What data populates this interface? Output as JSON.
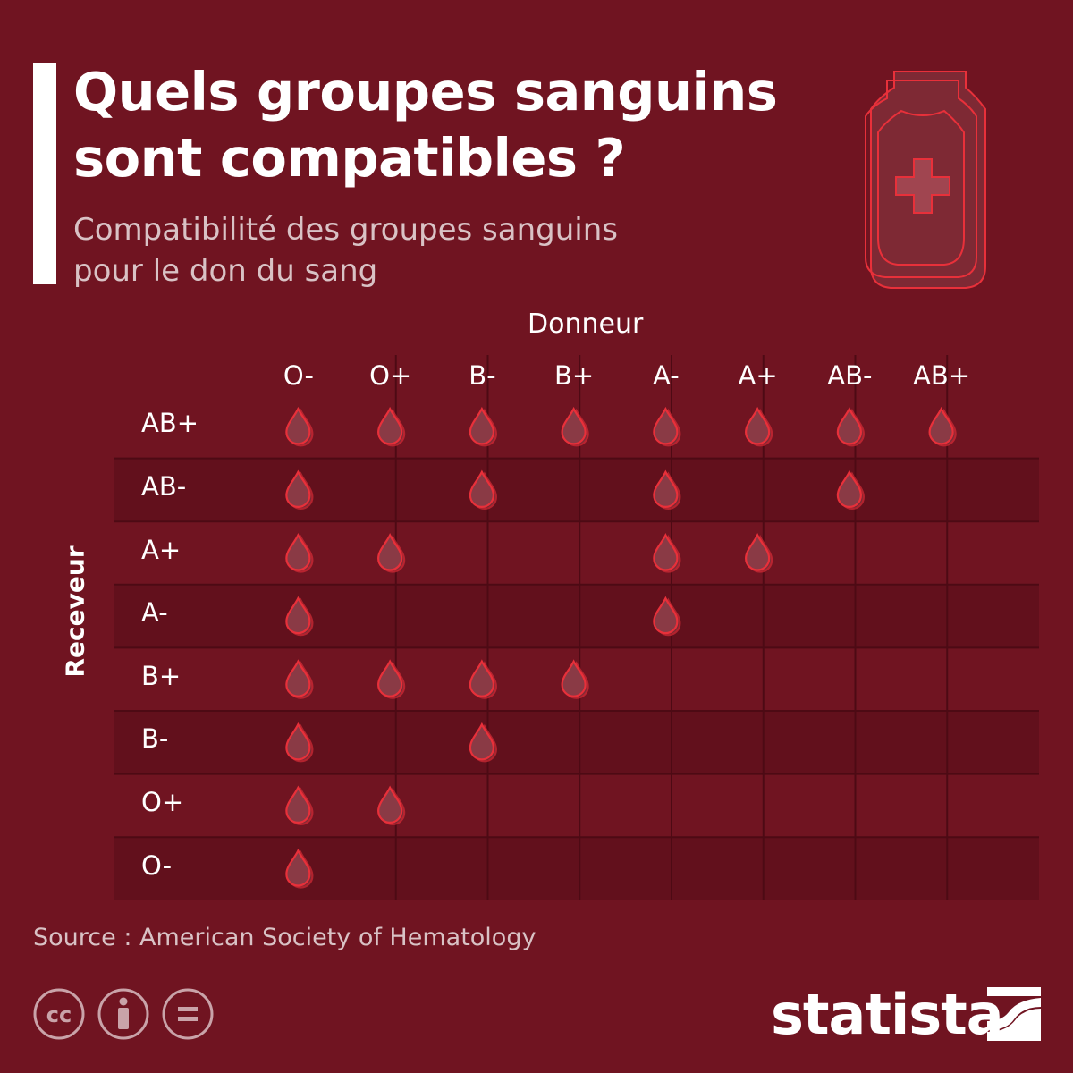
{
  "header": {
    "title_line1": "Quels groupes sanguins",
    "title_line2": "sont compatibles ?",
    "subtitle_line1": "Compatibilité des groupes sanguins",
    "subtitle_line2": "pour le don du sang"
  },
  "chart_data": {
    "type": "table",
    "xlabel": "Donneur",
    "ylabel": "Receveur",
    "columns": [
      "O-",
      "O+",
      "B-",
      "B+",
      "A-",
      "A+",
      "AB-",
      "AB+"
    ],
    "rows": [
      {
        "label": "AB+",
        "compatible": [
          true,
          true,
          true,
          true,
          true,
          true,
          true,
          true
        ]
      },
      {
        "label": "AB-",
        "compatible": [
          true,
          false,
          true,
          false,
          true,
          false,
          true,
          false
        ]
      },
      {
        "label": "A+",
        "compatible": [
          true,
          true,
          false,
          false,
          true,
          true,
          false,
          false
        ]
      },
      {
        "label": "A-",
        "compatible": [
          true,
          false,
          false,
          false,
          true,
          false,
          false,
          false
        ]
      },
      {
        "label": "B+",
        "compatible": [
          true,
          true,
          true,
          true,
          false,
          false,
          false,
          false
        ]
      },
      {
        "label": "B-",
        "compatible": [
          true,
          false,
          true,
          false,
          false,
          false,
          false,
          false
        ]
      },
      {
        "label": "O+",
        "compatible": [
          true,
          true,
          false,
          false,
          false,
          false,
          false,
          false
        ]
      },
      {
        "label": "O-",
        "compatible": [
          true,
          false,
          false,
          false,
          false,
          false,
          false,
          false
        ]
      }
    ],
    "marker_icon": "blood-drop-icon"
  },
  "footer": {
    "source": "Source : American Society of Hematology",
    "brand": "statista",
    "license_icons": [
      "cc-icon",
      "attribution-icon",
      "no-derivatives-icon"
    ]
  },
  "colors": {
    "background": "#701421",
    "row_dark": "#62101c",
    "drop_stroke": "#e8303a",
    "drop_fill": "#8a3a45"
  }
}
